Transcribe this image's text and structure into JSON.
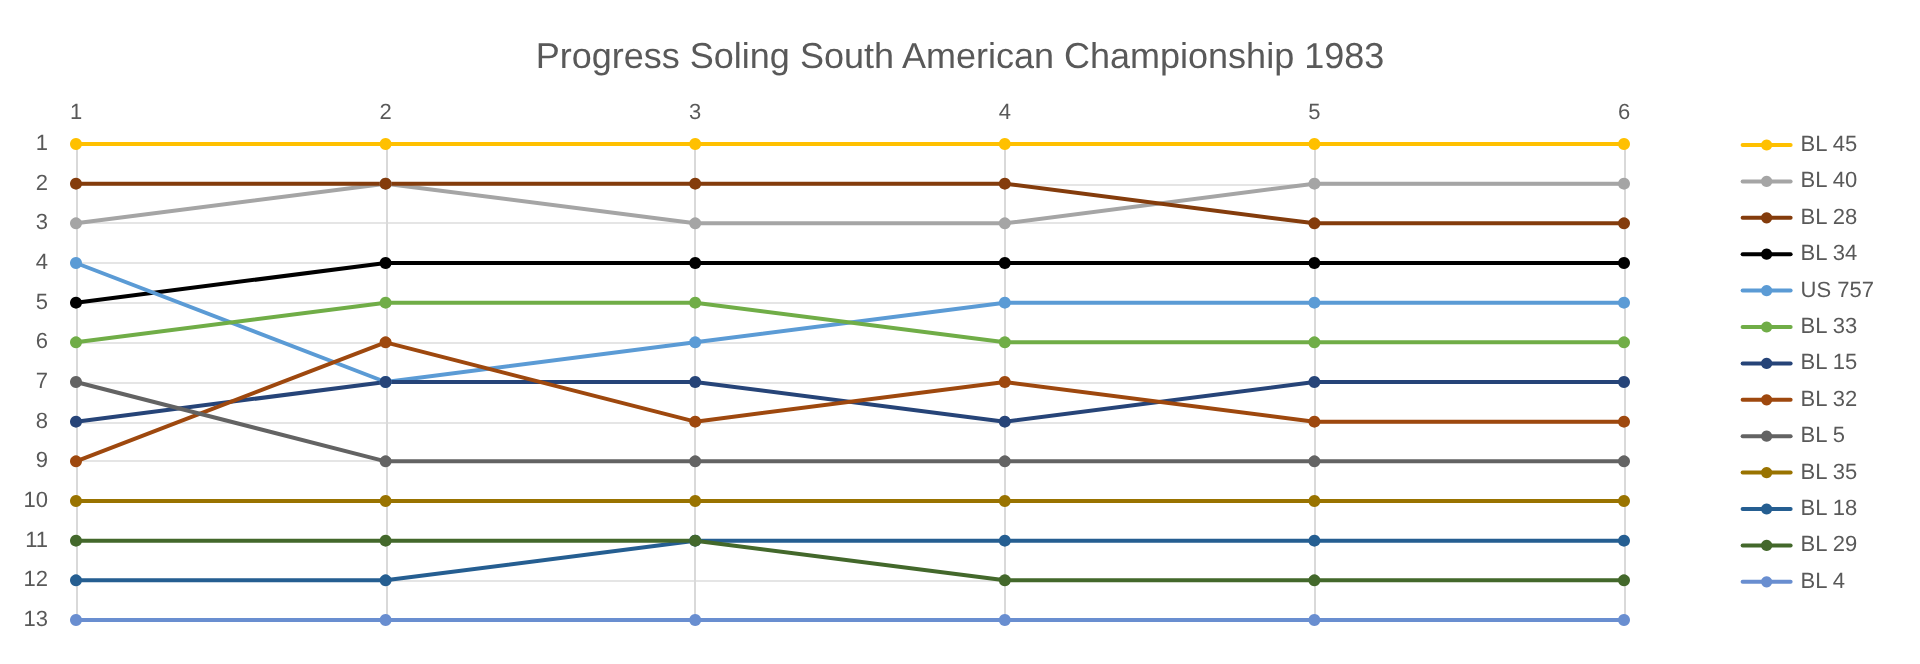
{
  "chart_data": {
    "type": "line",
    "title": "Progress Soling South American Championship 1983",
    "x": [
      1,
      2,
      3,
      4,
      5,
      6
    ],
    "xlim": [
      1,
      6
    ],
    "xticks": [
      1,
      2,
      3,
      4,
      5,
      6
    ],
    "ylim": [
      13,
      1
    ],
    "yticks": [
      1,
      2,
      3,
      4,
      5,
      6,
      7,
      8,
      9,
      10,
      11,
      12,
      13
    ],
    "grid": true,
    "legend": "right",
    "marker": "circle",
    "line_style": "solid",
    "series": [
      {
        "name": "BL 45",
        "color": "#ffc000",
        "values": [
          1,
          1,
          1,
          1,
          1,
          1
        ]
      },
      {
        "name": "BL 40",
        "color": "#a5a5a5",
        "values": [
          3,
          2,
          3,
          3,
          2,
          2
        ]
      },
      {
        "name": "BL 28",
        "color": "#843c0c",
        "values": [
          2,
          2,
          2,
          2,
          3,
          3
        ]
      },
      {
        "name": "BL 34",
        "color": "#000000",
        "values": [
          5,
          4,
          4,
          4,
          4,
          4
        ]
      },
      {
        "name": "US 757",
        "color": "#5b9bd5",
        "values": [
          4,
          7,
          6,
          5,
          5,
          5
        ]
      },
      {
        "name": "BL 33",
        "color": "#70ad47",
        "values": [
          6,
          5,
          5,
          6,
          6,
          6
        ]
      },
      {
        "name": "BL 15",
        "color": "#264478",
        "values": [
          8,
          7,
          7,
          8,
          7,
          7
        ]
      },
      {
        "name": "BL 32",
        "color": "#9e480e",
        "values": [
          9,
          6,
          8,
          7,
          8,
          8
        ]
      },
      {
        "name": "BL 5",
        "color": "#636363",
        "values": [
          7,
          9,
          9,
          9,
          9,
          9
        ]
      },
      {
        "name": "BL 35",
        "color": "#997300",
        "values": [
          10,
          10,
          10,
          10,
          10,
          10
        ]
      },
      {
        "name": "BL 18",
        "color": "#255e91",
        "values": [
          12,
          12,
          11,
          11,
          11,
          11
        ]
      },
      {
        "name": "BL 29",
        "color": "#43682b",
        "values": [
          11,
          11,
          11,
          12,
          12,
          12
        ]
      },
      {
        "name": "BL 4",
        "color": "#698ed0",
        "values": [
          13,
          13,
          13,
          13,
          13,
          13
        ]
      }
    ]
  }
}
